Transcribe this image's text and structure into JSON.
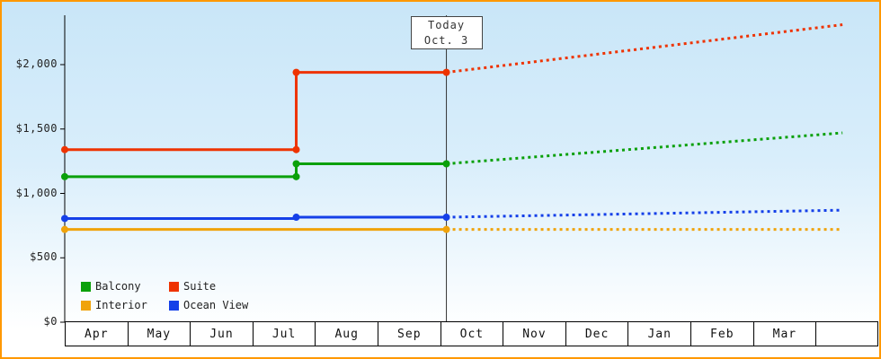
{
  "chart_data": {
    "type": "line",
    "x_axis": {
      "unit": "month",
      "labels": [
        "Apr",
        "May",
        "Jun",
        "Jul",
        "Aug",
        "Sep",
        "Oct",
        "Nov",
        "Dec",
        "Jan",
        "Feb",
        "Mar"
      ]
    },
    "y_axis": {
      "tick_labels": [
        "$0",
        "$500",
        "$1,000",
        "$1,500",
        "$2,000"
      ],
      "tick_values": [
        0,
        500,
        1000,
        1500,
        2000
      ],
      "range": [
        0,
        2390
      ]
    },
    "today_marker": {
      "line1": "Today",
      "line2": "Oct. 3",
      "month_position": 6.1
    },
    "plot_end_month": 12.43,
    "legend_position": "bottom-left",
    "series": [
      {
        "name": "Balcony",
        "color": "#0aa00a",
        "past": [
          [
            0,
            1130
          ],
          [
            3.7,
            1130
          ],
          [
            3.7,
            1230
          ],
          [
            6.1,
            1230
          ]
        ],
        "future": [
          [
            6.1,
            1230
          ],
          [
            12.43,
            1470
          ]
        ],
        "markers": [
          [
            0,
            1130
          ],
          [
            3.7,
            1130
          ],
          [
            3.7,
            1230
          ],
          [
            6.1,
            1230
          ]
        ]
      },
      {
        "name": "Suite",
        "color": "#ee3300",
        "past": [
          [
            0,
            1340
          ],
          [
            3.7,
            1340
          ],
          [
            3.7,
            1940
          ],
          [
            6.1,
            1940
          ]
        ],
        "future": [
          [
            6.1,
            1940
          ],
          [
            12.43,
            2310
          ]
        ],
        "markers": [
          [
            0,
            1340
          ],
          [
            3.7,
            1340
          ],
          [
            3.7,
            1940
          ],
          [
            6.1,
            1940
          ]
        ]
      },
      {
        "name": "Interior",
        "color": "#f0a30a",
        "past": [
          [
            0,
            720
          ],
          [
            6.1,
            720
          ]
        ],
        "future": [
          [
            6.1,
            720
          ],
          [
            12.43,
            720
          ]
        ],
        "markers": [
          [
            0,
            720
          ],
          [
            6.1,
            720
          ]
        ]
      },
      {
        "name": "Ocean View",
        "color": "#1540e8",
        "past": [
          [
            0,
            805
          ],
          [
            3.7,
            805
          ],
          [
            3.7,
            815
          ],
          [
            6.1,
            815
          ]
        ],
        "future": [
          [
            6.1,
            815
          ],
          [
            12.43,
            870
          ]
        ],
        "markers": [
          [
            0,
            805
          ],
          [
            3.7,
            815
          ],
          [
            6.1,
            815
          ]
        ]
      }
    ]
  }
}
